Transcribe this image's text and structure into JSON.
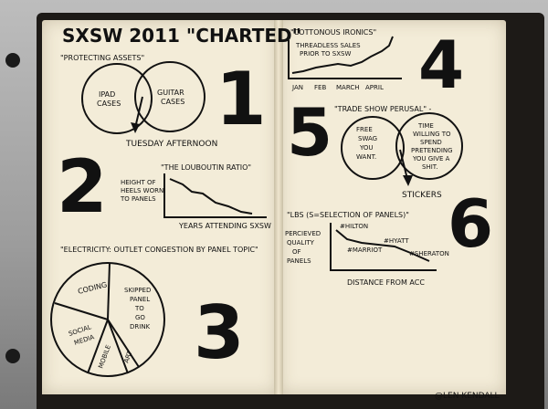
{
  "title": "SXSW 2011 \"CHARTED\"",
  "credit": "@LEN KENDALL",
  "sections": {
    "s1": {
      "number": "1",
      "heading": "\"PROTECTING ASSETS\"",
      "left_circle": [
        "IPAD",
        "CASES"
      ],
      "right_circle": [
        "GUITAR",
        "CASES"
      ],
      "result": "TUESDAY AFTERNOON"
    },
    "s2": {
      "number": "2",
      "heading": "\"THE LOUBOUTIN RATIO\"",
      "ylabel": [
        "HEIGHT OF",
        "HEELS WORN",
        "TO PANELS"
      ],
      "xlabel": "YEARS ATTENDING SXSW"
    },
    "s3": {
      "number": "3",
      "heading": "\"ELECTRICITY: OUTLET CONGESTION BY PANEL TOPIC\"",
      "slices": [
        "CODING",
        "SKIPPED",
        "PANEL",
        "TO",
        "GO",
        "DRINK",
        "SOCIAL",
        "MEDIA",
        "MOBILE",
        "ART"
      ]
    },
    "s4": {
      "number": "4",
      "heading": "\"COTTONOUS IRONICS\"",
      "line_label": [
        "THREADLESS SALES",
        "PRIOR TO SXSW"
      ],
      "months": [
        "JAN",
        "FEB",
        "MARCH",
        "APRIL"
      ]
    },
    "s5": {
      "number": "5",
      "heading": "\"TRADE SHOW PERUSAL\" -",
      "left_circle": [
        "FREE",
        "SWAG",
        "YOU",
        "WANT."
      ],
      "right_circle": [
        "TIME",
        "WILLING TO",
        "SPEND",
        "PRETENDING",
        "YOU GIVE A",
        "SHIT."
      ],
      "result": "STICKERS"
    },
    "s6": {
      "number": "6",
      "heading": "\"LBS (S=SELECTION OF PANELS)\"",
      "ylabel": [
        "PERCIEVED",
        "QUALITY",
        "OF",
        "PANELS"
      ],
      "points": [
        "#HILTON",
        "#HYATT",
        "#MARRIOT",
        "#SHERATON"
      ],
      "xlabel": "DISTANCE FROM ACC"
    }
  }
}
